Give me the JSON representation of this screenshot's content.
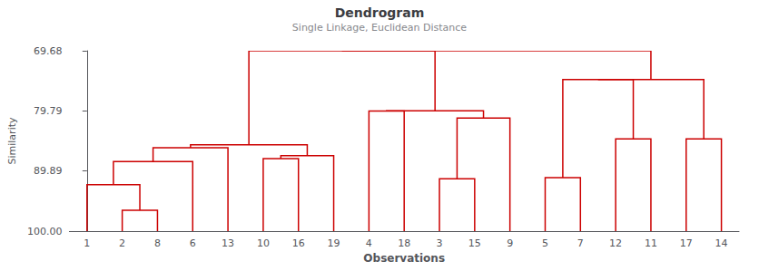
{
  "chart_data": {
    "type": "dendrogram",
    "title": "Dendrogram",
    "subtitle": "Single Linkage, Euclidean Distance",
    "x_label": "Observations",
    "y_label": "Similarity",
    "categories": [
      "1",
      "2",
      "8",
      "6",
      "13",
      "10",
      "16",
      "19",
      "4",
      "18",
      "3",
      "15",
      "9",
      "5",
      "7",
      "12",
      "11",
      "17",
      "14"
    ],
    "color": "#CC0000",
    "ylim": [
      100,
      69.68
    ],
    "yticks": [
      69.68,
      79.79,
      89.89,
      {
        "value": 100,
        "label": "100.00"
      }
    ],
    "grid": false,
    "tree": {
      "height": 69.68,
      "children": [
        {
          "height": 69.68,
          "children": [
            {
              "height": 85.5,
              "children": [
                {
                  "height": 86.0,
                  "children": [
                    "13",
                    {
                      "height": 88.3,
                      "children": [
                        "6",
                        {
                          "height": 92.2,
                          "children": [
                            "1",
                            {
                              "height": 96.5,
                              "children": [
                                "2",
                                "8"
                              ]
                            }
                          ]
                        }
                      ]
                    }
                  ]
                },
                {
                  "height": 87.3,
                  "children": [
                    {
                      "height": 87.8,
                      "children": [
                        "10",
                        "16"
                      ]
                    },
                    "19"
                  ]
                }
              ]
            },
            {
              "height": 79.79,
              "children": [
                {
                  "height": 79.8,
                  "children": [
                    "4",
                    "18"
                  ]
                },
                {
                  "height": 81.0,
                  "children": [
                    "9",
                    {
                      "height": 91.2,
                      "children": [
                        "3",
                        "15"
                      ]
                    }
                  ]
                }
              ]
            }
          ]
        },
        {
          "height": 74.5,
          "children": [
            {
              "height": 74.5,
              "children": [
                {
                  "height": 91.0,
                  "children": [
                    "5",
                    "7"
                  ]
                },
                {
                  "height": 84.5,
                  "children": [
                    "12",
                    "11"
                  ]
                }
              ]
            },
            {
              "height": 84.5,
              "children": [
                "17",
                "14"
              ]
            }
          ]
        }
      ]
    }
  }
}
